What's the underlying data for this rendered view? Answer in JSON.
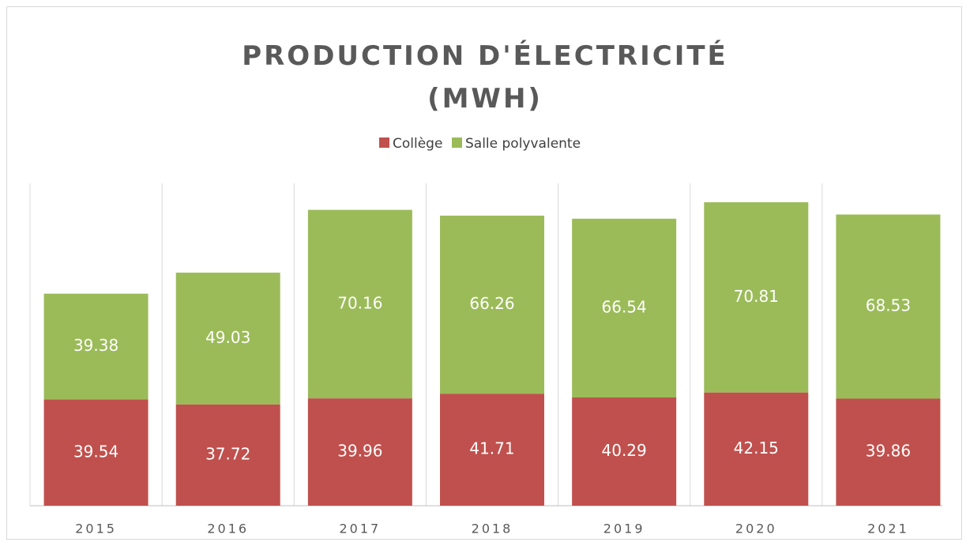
{
  "chart_data": {
    "type": "stacked-bar",
    "title": "PRODUCTION D'ÉLECTRICITÉ (MWH)",
    "categories": [
      "2015",
      "2016",
      "2017",
      "2018",
      "2019",
      "2020",
      "2021"
    ],
    "series": [
      {
        "name": "Collège",
        "color": "#c0504d",
        "values": [
          39.54,
          37.72,
          39.96,
          41.71,
          40.29,
          42.15,
          39.86
        ]
      },
      {
        "name": "Salle polyvalente",
        "color": "#9bbb59",
        "values": [
          39.38,
          49.03,
          70.16,
          66.26,
          66.54,
          70.81,
          68.53
        ]
      }
    ],
    "ylim": [
      0,
      120
    ],
    "legend": "top"
  }
}
